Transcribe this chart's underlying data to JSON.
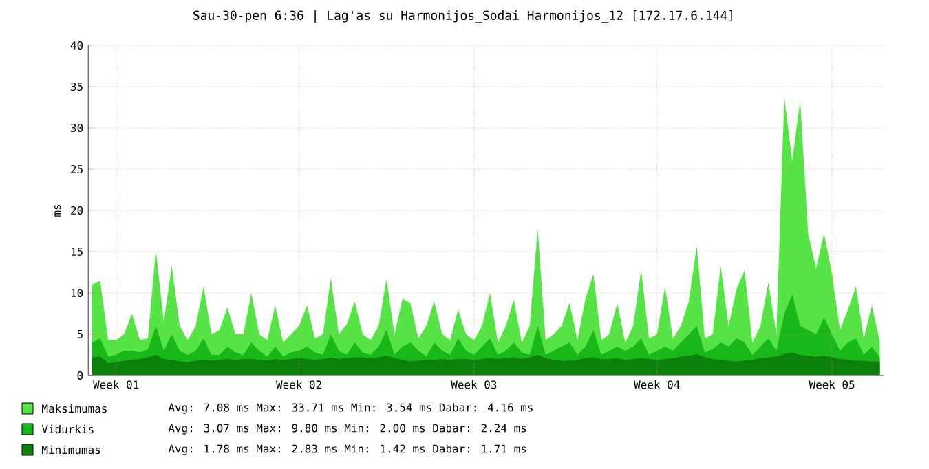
{
  "chart_data": {
    "type": "area",
    "title": "Sau-30-pen 6:36 | Lag'as su Harmonijos_Sodai Harmonijos_12 [172.17.6.144]",
    "ylabel": "ms",
    "categories": [
      null,
      null,
      null,
      "Week 01",
      null,
      null,
      null,
      null,
      null,
      null,
      null,
      null,
      null,
      null,
      null,
      null,
      null,
      null,
      null,
      null,
      null,
      null,
      null,
      null,
      null,
      null,
      "Week 02",
      null,
      null,
      null,
      null,
      null,
      null,
      null,
      null,
      null,
      null,
      null,
      null,
      null,
      null,
      null,
      null,
      null,
      null,
      null,
      null,
      null,
      "Week 03",
      null,
      null,
      null,
      null,
      null,
      null,
      null,
      null,
      null,
      null,
      null,
      null,
      null,
      null,
      null,
      null,
      null,
      null,
      null,
      null,
      null,
      null,
      "Week 04",
      null,
      null,
      null,
      null,
      null,
      null,
      null,
      null,
      null,
      null,
      null,
      null,
      null,
      null,
      null,
      null,
      null,
      null,
      null,
      null,
      null,
      "Week 05",
      null,
      null,
      null,
      null,
      null,
      null
    ],
    "ylim": [
      0,
      40
    ],
    "yticks": [
      0,
      5,
      10,
      15,
      20,
      25,
      30,
      35,
      40
    ],
    "grid": true,
    "legend": "bottom",
    "series": [
      {
        "name": "Maksimumas",
        "color": "#55e346",
        "values": [
          11,
          11.5,
          4.3,
          4.3,
          5,
          7.5,
          4.3,
          4.5,
          15.3,
          6.5,
          13.3,
          6,
          4.3,
          6,
          10.8,
          5,
          5.5,
          8.3,
          5,
          5,
          10,
          5,
          4.3,
          8.5,
          4,
          5,
          6,
          8.5,
          4.5,
          5,
          11.8,
          5,
          6.2,
          9,
          5,
          4.3,
          6,
          11.7,
          5,
          9.3,
          8.8,
          4.5,
          6,
          9,
          5,
          4.3,
          8,
          5,
          4.3,
          6,
          10,
          4,
          6,
          9.2,
          4,
          6,
          17.8,
          4.3,
          5,
          6,
          8.8,
          4.3,
          9.3,
          12.3,
          4.3,
          5,
          8.8,
          4,
          6,
          12.8,
          4.5,
          5,
          10.8,
          4.5,
          6,
          9,
          15.7,
          4.5,
          5,
          13.3,
          6,
          10.5,
          12.7,
          4,
          6,
          11.3,
          5,
          33.7,
          26,
          33.3,
          17.2,
          13,
          17.2,
          12.3,
          5.5,
          8,
          10.8,
          4.5,
          8.5,
          4.2
        ]
      },
      {
        "name": "Vidurkis",
        "color": "#18b818",
        "values": [
          4,
          4.5,
          2.3,
          2.5,
          3,
          3,
          2.8,
          3.2,
          6,
          3,
          5,
          3,
          2.5,
          3,
          4.5,
          2.5,
          2.5,
          3.5,
          2.8,
          2.5,
          4,
          3,
          2.3,
          3.5,
          2.3,
          2.8,
          3,
          3.5,
          2.8,
          2.5,
          5,
          3,
          2.5,
          4,
          2.8,
          2.5,
          3.5,
          5.5,
          2.5,
          3.5,
          4,
          3,
          2.3,
          4,
          3,
          2.5,
          4.5,
          3,
          2.5,
          3.5,
          4.5,
          2.5,
          3,
          4,
          2.8,
          2.5,
          6,
          2.5,
          3,
          3.5,
          4,
          2.5,
          3.5,
          5.5,
          2.5,
          3,
          3.5,
          3,
          3.5,
          4.5,
          2.5,
          3,
          3.5,
          3,
          4,
          5,
          6,
          2.8,
          3.2,
          4,
          3.5,
          4.5,
          4,
          2.5,
          3.5,
          4.5,
          3,
          7.5,
          9.8,
          6,
          5.5,
          5,
          7,
          5,
          3,
          4,
          4.5,
          2.5,
          3.5,
          2.2
        ]
      },
      {
        "name": "Minimumas",
        "color": "#0b800b",
        "values": [
          2.2,
          2.3,
          1.5,
          1.6,
          1.8,
          1.9,
          2,
          2.2,
          2.5,
          2,
          1.9,
          1.7,
          1.6,
          1.8,
          1.9,
          1.8,
          1.9,
          2,
          1.9,
          2,
          2,
          1.9,
          1.8,
          2,
          1.9,
          2,
          2.1,
          2,
          1.9,
          2,
          2.2,
          2,
          2.1,
          2.2,
          2.2,
          2.1,
          2.2,
          2.4,
          2.1,
          1.9,
          1.7,
          1.8,
          1.9,
          1.9,
          2,
          1.9,
          2,
          2,
          1.9,
          2,
          2.1,
          2,
          2.1,
          2.2,
          2,
          2.2,
          2.5,
          2.1,
          1.9,
          1.8,
          1.8,
          1.9,
          2.1,
          2.2,
          2,
          2,
          2.1,
          1.9,
          2,
          2.1,
          2,
          1.9,
          2,
          2.1,
          2.3,
          2.4,
          2.6,
          2.2,
          2,
          1.9,
          1.8,
          1.7,
          1.8,
          1.9,
          2.1,
          2.2,
          2.3,
          2.6,
          2.8,
          2.5,
          2.4,
          2.3,
          2.4,
          2.2,
          2,
          1.9,
          1.8,
          1.8,
          1.7,
          1.7
        ]
      }
    ],
    "annotations": [
      "Avg:   7.08 ms   Max:  33.71 ms   Min:   3.54 ms   Dabar:   4.16 ms",
      "Avg:   3.07 ms   Max:   9.80 ms   Min:   2.00 ms   Dabar:   2.24 ms",
      "Avg:   1.78 ms   Max:   2.83 ms   Min:   1.42 ms   Dabar:   1.71 ms"
    ]
  }
}
